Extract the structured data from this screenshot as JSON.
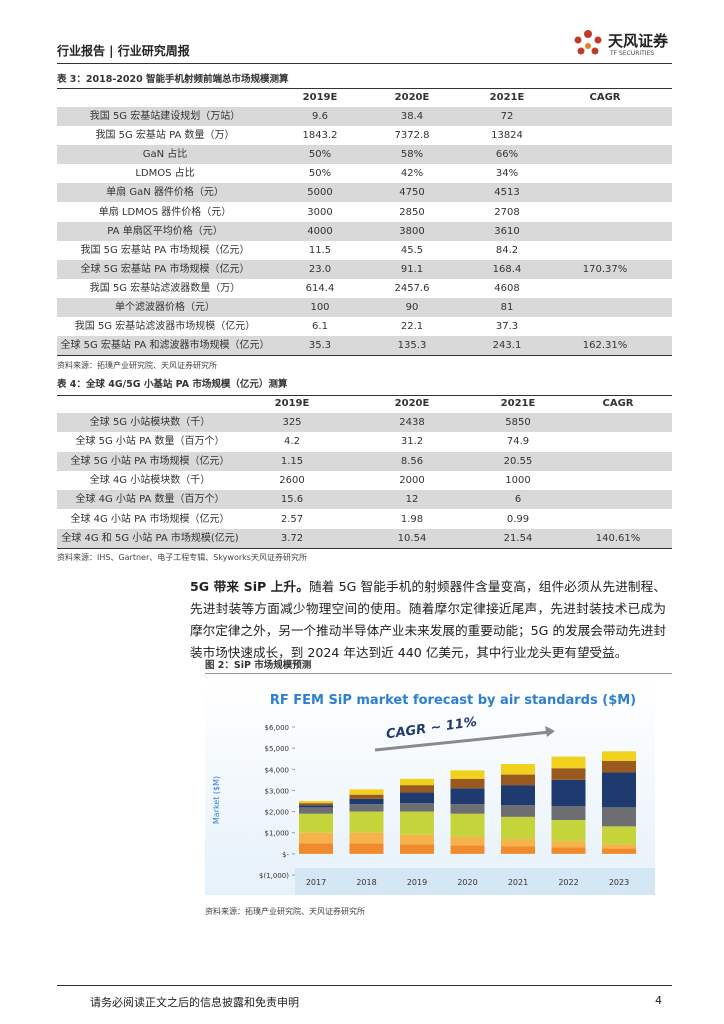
{
  "header": {
    "left": "行业报告 | 行业研究周报",
    "logo_cn": "天风证券",
    "logo_en": "TF SECURITIES"
  },
  "table3": {
    "title": "表 3：2018-2020 智能手机射频前端总市场规模测算",
    "columns": [
      null,
      "2019E",
      "2020E",
      "2021E",
      "CAGR"
    ],
    "rows": [
      [
        "我国 5G 宏基站建设规划（万站）",
        "9.6",
        "38.4",
        "72",
        null
      ],
      [
        "我国 5G 宏基站 PA 数量（万）",
        "1843.2",
        "7372.8",
        "13824",
        null
      ],
      [
        "GaN 占比",
        "50%",
        "58%",
        "66%",
        null
      ],
      [
        "LDMOS 占比",
        "50%",
        "42%",
        "34%",
        null
      ],
      [
        "单扇 GaN 器件价格（元）",
        "5000",
        "4750",
        "4513",
        null
      ],
      [
        "单扇 LDMOS 器件价格（元）",
        "3000",
        "2850",
        "2708",
        null
      ],
      [
        "PA 单扇区平均价格（元）",
        "4000",
        "3800",
        "3610",
        null
      ],
      [
        "我国 5G 宏基站 PA 市场规模（亿元）",
        "11.5",
        "45.5",
        "84.2",
        null
      ],
      [
        "全球 5G 宏基站 PA 市场规模（亿元）",
        "23.0",
        "91.1",
        "168.4",
        "170.37%"
      ],
      [
        "我国 5G 宏基站滤波器数量（万）",
        "614.4",
        "2457.6",
        "4608",
        null
      ],
      [
        "单个滤波器价格（元）",
        "100",
        "90",
        "81",
        null
      ],
      [
        "我国 5G 宏基站滤波器市场规模（亿元）",
        "6.1",
        "22.1",
        "37.3",
        null
      ],
      [
        "全球 5G 宏基站 PA 和滤波器市场规模（亿元）",
        "35.3",
        "135.3",
        "243.1",
        "162.31%"
      ]
    ],
    "source": "资料来源：拓璞产业研究院、天风证券研究所"
  },
  "table4": {
    "title": "表 4：全球 4G/5G 小基站 PA 市场规模（亿元）测算",
    "columns": [
      null,
      "2019E",
      "2020E",
      "2021E",
      "CAGR"
    ],
    "rows": [
      [
        "全球 5G 小站模块数（千）",
        "325",
        "2438",
        "5850",
        null
      ],
      [
        "全球 5G 小站 PA 数量（百万个）",
        "4.2",
        "31.2",
        "74.9",
        null
      ],
      [
        "全球 5G 小站 PA 市场规模（亿元）",
        "1.15",
        "8.56",
        "20.55",
        null
      ],
      [
        "全球 4G 小站模块数（千）",
        "2600",
        "2000",
        "1000",
        null
      ],
      [
        "全球 4G 小站 PA 数量（百万个）",
        "15.6",
        "12",
        "6",
        null
      ],
      [
        "全球 4G 小站 PA 市场规模（亿元）",
        "2.57",
        "1.98",
        "0.99",
        null
      ],
      [
        "全球 4G 和 5G 小站 PA 市场规模(亿元)",
        "3.72",
        "10.54",
        "21.54",
        "140.61%"
      ]
    ],
    "source": "资料来源：IHS、Gartner、电子工程专辑、Skyworks天风证券研究所"
  },
  "paragraph": {
    "lead": "5G 带来 SiP 上升。",
    "body": "随着 5G 智能手机的射频器件含量变高，组件必须从先进制程、先进封装等方面减少物理空间的使用。随着摩尔定律接近尾声，先进封装技术已成为摩尔定律之外，另一个推动半导体产业未来发展的重要动能；5G 的发展会带动先进封装市场快速成长，到 2024 年达到近 440 亿美元，其中行业龙头更有望受益。"
  },
  "figure": {
    "title": "图 2：SiP 市场规模预测",
    "chart": {
      "type": "bar",
      "stacked": true,
      "title": "RF FEM SiP market forecast by air standards ($M)",
      "annotation": "CAGR ~ 11%",
      "y_label": "Market ($M)",
      "categories": [
        "2017",
        "2018",
        "2019",
        "2020",
        "2021",
        "2022",
        "2023"
      ],
      "ylim": [
        -1000,
        6000
      ],
      "yticks": [
        {
          "value": -1000,
          "label": "$(1,000)"
        },
        {
          "value": 0,
          "label": "$-"
        },
        {
          "value": 1000,
          "label": "$1,000"
        },
        {
          "value": 2000,
          "label": "$2,000"
        },
        {
          "value": 3000,
          "label": "$3,000"
        },
        {
          "value": 4000,
          "label": "$4,000"
        },
        {
          "value": 5000,
          "label": "$5,000"
        },
        {
          "value": 6000,
          "label": "$6,000"
        }
      ],
      "series": [
        {
          "color": "#f08a2a",
          "values": [
            500,
            500,
            450,
            400,
            350,
            300,
            250
          ]
        },
        {
          "color": "#f6b24c",
          "values": [
            500,
            500,
            450,
            400,
            350,
            300,
            200
          ]
        },
        {
          "color": "#c6d43c",
          "values": [
            900,
            1000,
            1100,
            1100,
            1050,
            1000,
            850
          ]
        },
        {
          "color": "#6d6e71",
          "values": [
            300,
            350,
            400,
            450,
            550,
            650,
            900
          ]
        },
        {
          "color": "#1f3a6e",
          "values": [
            100,
            250,
            500,
            750,
            950,
            1250,
            1650
          ]
        },
        {
          "color": "#9a5a1e",
          "values": [
            100,
            200,
            350,
            450,
            500,
            550,
            550
          ]
        },
        {
          "color": "#f2d11e",
          "values": [
            100,
            250,
            300,
            400,
            500,
            550,
            450
          ]
        }
      ]
    },
    "source": "资料来源：拓璞产业研究院、天风证券研究所"
  },
  "footer": {
    "disclaimer": "请务必阅读正文之后的信息披露和免责申明",
    "page": "4"
  }
}
